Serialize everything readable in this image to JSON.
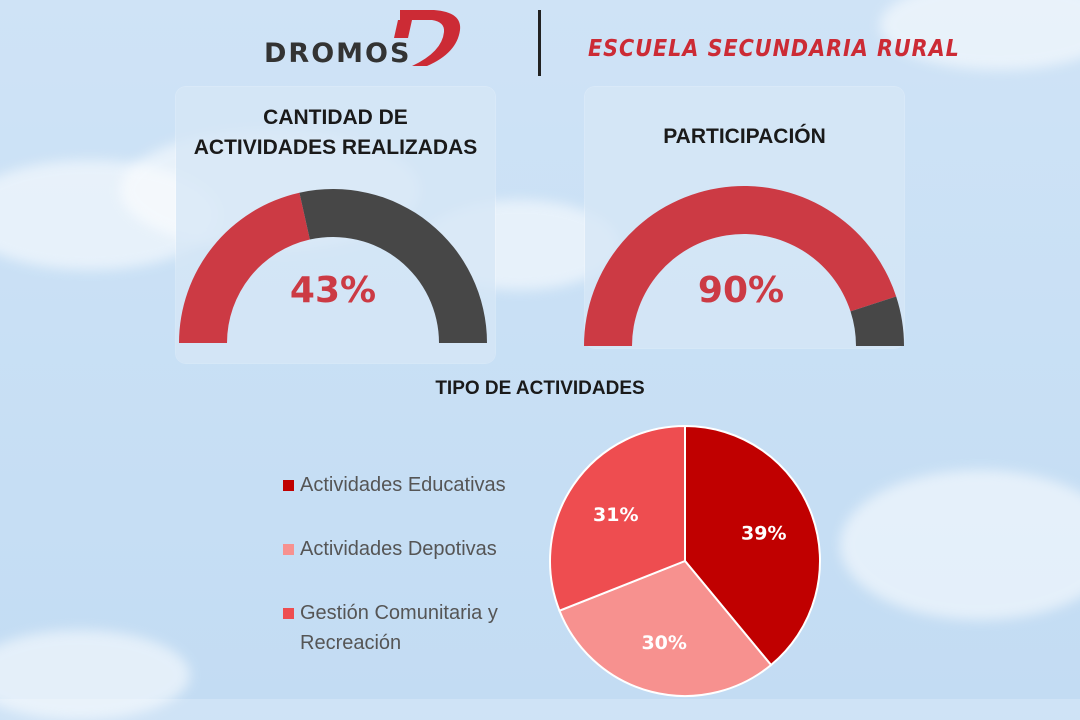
{
  "header": {
    "logo_text": "DROMOS",
    "school_name": "ESCUELA SECUNDARIA RURAL"
  },
  "colors": {
    "brand_red": "#cc2b35",
    "gauge_red": "#cc3a44",
    "gauge_dark": "#474747",
    "slice_edu": "#c00000",
    "slice_dep": "#f7918f",
    "slice_gest": "#ee4d50"
  },
  "chart_data": [
    {
      "type": "gauge",
      "title_line1": "CANTIDAD DE",
      "title_line2": "ACTIVIDADES REALIZADAS",
      "value": 43,
      "value_label": "43%",
      "max": 100
    },
    {
      "type": "gauge",
      "title": "PARTICIPACIÓN",
      "value": 90,
      "value_label": "90%",
      "max": 100
    },
    {
      "type": "pie",
      "title": "TIPO DE ACTIVIDADES",
      "categories": [
        "Actividades Educativas",
        "Actividades Depotivas",
        "Gestión Comunitaria y Recreación"
      ],
      "legend": [
        {
          "line1": "Actividades Educativas",
          "line2": ""
        },
        {
          "line1": "Actividades Depotivas",
          "line2": ""
        },
        {
          "line1": "Gestión Comunitaria y",
          "line2": "Recreación"
        }
      ],
      "values": [
        39,
        30,
        31
      ],
      "labels": [
        "39%",
        "30%",
        "31%"
      ]
    }
  ]
}
